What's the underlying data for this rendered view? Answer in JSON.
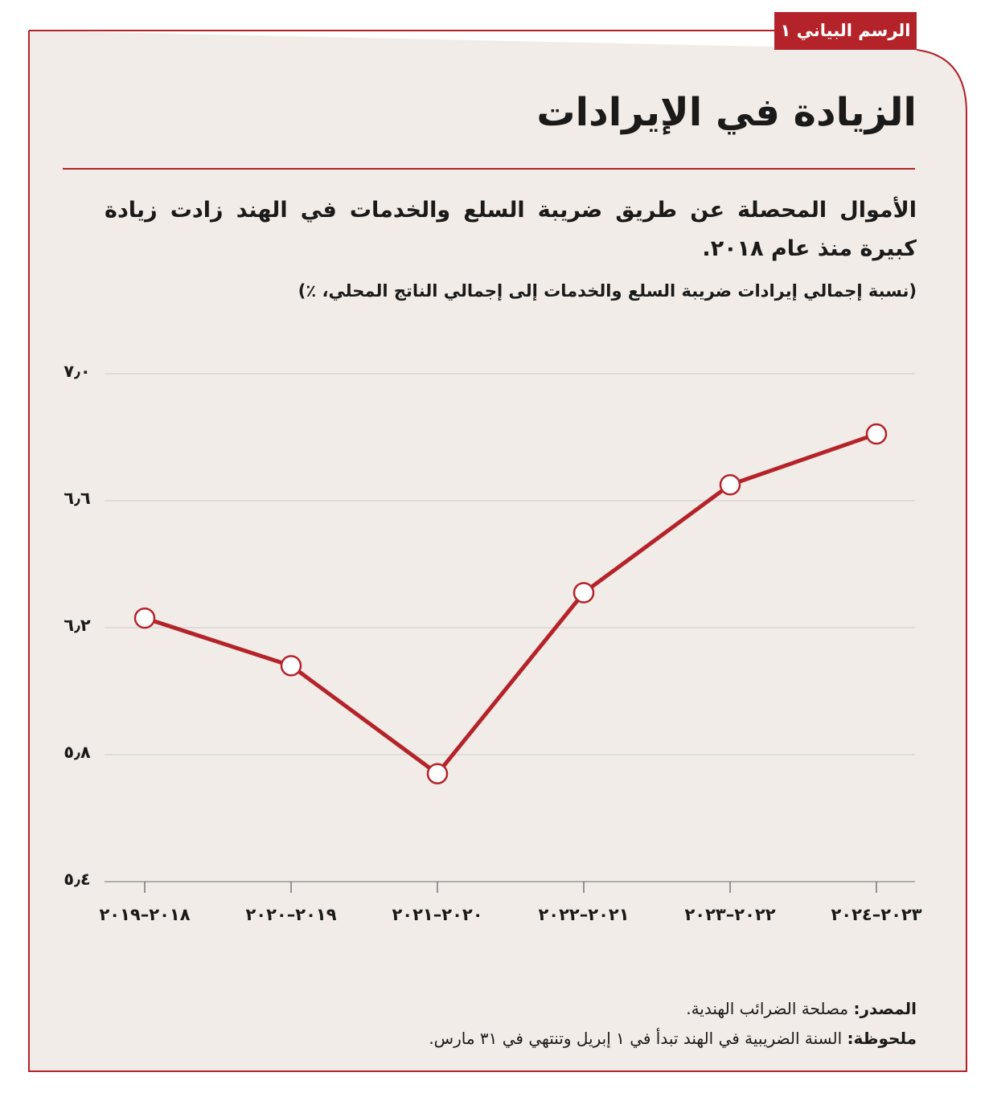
{
  "badge": "الرسم البياني ١",
  "chart_data": {
    "type": "line",
    "title": "الزيادة في الإيرادات",
    "subtitle": "الأموال المحصلة عن طريق ضريبة السلع والخدمات في الهند زادت زيادة كبيرة منذ عام ٢٠١٨.",
    "y_label": "(نسبة إجمالي إيرادات ضريبة السلع والخدمات إلى إجمالي الناتج المحلي، ٪)",
    "categories": [
      "٢٠١٨–٢٠١٩",
      "٢٠١٩–٢٠٢٠",
      "٢٠٢٠–٢٠٢١",
      "٢٠٢١–٢٠٢٢",
      "٢٠٢٢–٢٠٢٣",
      "٢٠٢٣–٢٠٢٤"
    ],
    "series": [
      {
        "color": "#b5232a",
        "values": [
          6.23,
          6.08,
          5.74,
          6.31,
          6.65,
          6.81
        ]
      }
    ],
    "ylim": [
      5.4,
      7.0
    ],
    "yticks": [
      {
        "value": 5.4,
        "label": "٥٫٤"
      },
      {
        "value": 5.8,
        "label": "٥٫٨"
      },
      {
        "value": 6.2,
        "label": "٦٫٢"
      },
      {
        "value": 6.6,
        "label": "٦٫٦"
      },
      {
        "value": 7.0,
        "label": "٧٫٠"
      }
    ],
    "grid": true
  },
  "source": {
    "label": "المصدر:",
    "text": " مصلحة الضرائب الهندية."
  },
  "note": {
    "label": "ملحوظة:",
    "text": " السنة الضريبية في الهند تبدأ في ١ إبريل وتنتهي في ٣١ مارس."
  }
}
